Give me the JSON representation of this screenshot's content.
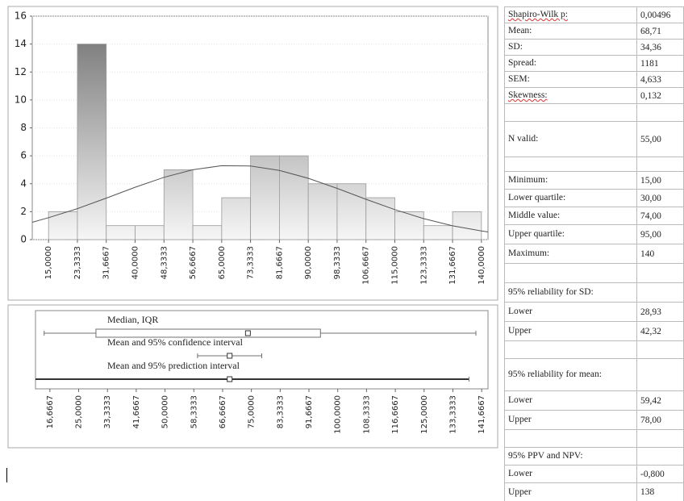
{
  "chart_data": [
    {
      "type": "histogram",
      "bins": [
        15,
        23.3333,
        31.6667,
        40,
        48.3333,
        56.6667,
        65,
        73.3333,
        81.6667,
        90,
        98.3333,
        106.6667,
        115,
        123.3333,
        131.6667,
        140
      ],
      "values": [
        2,
        14,
        1,
        1,
        5,
        1,
        3,
        6,
        6,
        4,
        4,
        3,
        2,
        1,
        2
      ],
      "color": "#707070",
      "xlim": [
        10.3,
        141.9
      ],
      "xticks": [
        {
          "value": 15,
          "label": "15,0000"
        },
        {
          "value": 23.3333,
          "label": "23,3333"
        },
        {
          "value": 31.6667,
          "label": "31,6667"
        },
        {
          "value": 40,
          "label": "40,0000"
        },
        {
          "value": 48.3333,
          "label": "48,3333"
        },
        {
          "value": 56.6667,
          "label": "56,6667"
        },
        {
          "value": 65,
          "label": "65,0000"
        },
        {
          "value": 73.3333,
          "label": "73,3333"
        },
        {
          "value": 81.6667,
          "label": "81,6667"
        },
        {
          "value": 90,
          "label": "90,0000"
        },
        {
          "value": 98.3333,
          "label": "98,3333"
        },
        {
          "value": 106.6667,
          "label": "106,6667"
        },
        {
          "value": 115,
          "label": "115,0000"
        },
        {
          "value": 123.3333,
          "label": "123,3333"
        },
        {
          "value": 131.6667,
          "label": "131,6667"
        },
        {
          "value": 140,
          "label": "140,0000"
        }
      ],
      "ylim": [
        0,
        16
      ],
      "yticks": [
        0,
        2,
        4,
        6,
        8,
        10,
        12,
        14,
        16
      ],
      "grid": true,
      "curve": {
        "color": "#555555",
        "x": [
          10.3,
          15,
          23.3333,
          31.6667,
          40,
          48.3333,
          56.6667,
          65,
          73.3333,
          81.6667,
          90,
          98.3333,
          106.6667,
          115,
          123.3333,
          131.6667,
          140,
          141.9
        ],
        "values": [
          1.24,
          1.57,
          2.22,
          2.97,
          3.75,
          4.46,
          5.0,
          5.29,
          5.27,
          4.95,
          4.39,
          3.67,
          2.89,
          2.15,
          1.5,
          0.99,
          0.62,
          0.55
        ]
      }
    },
    {
      "type": "box",
      "color": "#707070",
      "xlim": [
        12.5,
        143.5
      ],
      "xticks": [
        {
          "value": 16.6667,
          "label": "16,6667"
        },
        {
          "value": 25,
          "label": "25,0000"
        },
        {
          "value": 33.3333,
          "label": "33,3333"
        },
        {
          "value": 41.6667,
          "label": "41,6667"
        },
        {
          "value": 50,
          "label": "50,0000"
        },
        {
          "value": 58.3333,
          "label": "58,3333"
        },
        {
          "value": 66.6667,
          "label": "66,6667"
        },
        {
          "value": 75,
          "label": "75,0000"
        },
        {
          "value": 83.3333,
          "label": "83,3333"
        },
        {
          "value": 91.6667,
          "label": "91,6667"
        },
        {
          "value": 100,
          "label": "100,0000"
        },
        {
          "value": 108.3333,
          "label": "108,3333"
        },
        {
          "value": 116.6667,
          "label": "116,6667"
        },
        {
          "value": 125,
          "label": "125,0000"
        },
        {
          "value": 133.3333,
          "label": "133,3333"
        },
        {
          "value": 141.6667,
          "label": "141,6667"
        }
      ],
      "rows": [
        {
          "label": "Median, IQR",
          "low": 15,
          "q1": 30,
          "center": 74,
          "q3": 95,
          "high": 140
        },
        {
          "label": "Mean and 95% confidence interval",
          "low": 59.42,
          "center": 68.71,
          "high": 78.0
        },
        {
          "label": "Mean and 95% prediction interval",
          "low": -0.8,
          "center": 68.71,
          "high": 138
        }
      ]
    }
  ],
  "table": {
    "rows": [
      [
        "Shapiro-Wilk p:",
        "0,00496"
      ],
      [
        "Mean:",
        "68,71"
      ],
      [
        "SD:",
        "34,36"
      ],
      [
        "Spread:",
        "1181"
      ],
      [
        "SEM:",
        "4,633"
      ],
      [
        "Skewness:",
        "0,132"
      ],
      [],
      [
        "N valid:",
        "55,00"
      ],
      [],
      [
        "Minimum:",
        "15,00"
      ],
      [
        "Lower quartile:",
        "30,00"
      ],
      [
        "Middle value:",
        "74,00"
      ],
      [
        "Upper quartile:",
        "95,00"
      ],
      [
        "Maximum:",
        "140"
      ],
      [],
      [
        "95% reliability for SD:"
      ],
      [
        "Lower",
        "28,93"
      ],
      [
        "Upper",
        "42,32"
      ],
      [],
      [
        "95% reliability for mean:"
      ],
      [
        "Lower",
        "59,42"
      ],
      [
        "Upper",
        "78,00"
      ],
      [],
      [
        "95% PPV and NPV:"
      ],
      [
        "Lower",
        "-0,800"
      ],
      [
        "Upper",
        "138"
      ]
    ]
  }
}
